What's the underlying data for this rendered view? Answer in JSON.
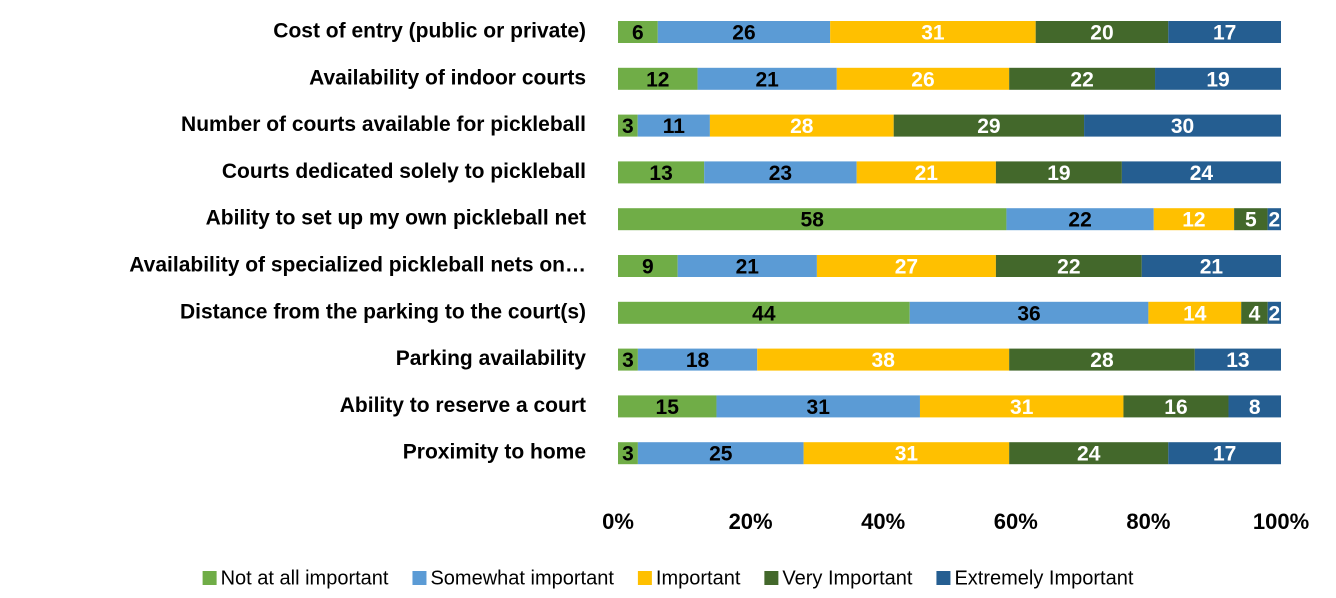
{
  "chart_data": {
    "type": "bar",
    "orientation": "horizontal",
    "stacked": "percent",
    "categories": [
      "Cost of entry (public or private)",
      "Availability of indoor courts",
      "Number of courts available for pickleball",
      "Courts dedicated solely to pickleball",
      "Ability to set up my own pickleball net",
      "Availability of specialized pickleball nets on…",
      "Distance from the parking to the court(s)",
      "Parking availability",
      "Ability to reserve a court",
      "Proximity to home"
    ],
    "series": [
      {
        "name": "Not at all important",
        "color": "#70ad47",
        "label_color": "#000000",
        "values": [
          6,
          12,
          3,
          13,
          58,
          9,
          44,
          3,
          15,
          3
        ]
      },
      {
        "name": "Somewhat important",
        "color": "#5b9bd5",
        "label_color": "#000000",
        "values": [
          26,
          21,
          11,
          23,
          22,
          21,
          36,
          18,
          31,
          25
        ]
      },
      {
        "name": "Important",
        "color": "#ffc000",
        "label_color": "#ffffff",
        "values": [
          31,
          26,
          28,
          21,
          12,
          27,
          14,
          38,
          31,
          31
        ]
      },
      {
        "name": "Very Important",
        "color": "#43682b",
        "label_color": "#ffffff",
        "values": [
          20,
          22,
          29,
          19,
          5,
          22,
          4,
          28,
          16,
          24
        ]
      },
      {
        "name": "Extremely Important",
        "color": "#255e91",
        "label_color": "#ffffff",
        "values": [
          17,
          19,
          30,
          24,
          2,
          21,
          2,
          13,
          8,
          17
        ]
      }
    ],
    "xlim": [
      0,
      100
    ],
    "xticks": [
      {
        "value": 0,
        "label": "0%"
      },
      {
        "value": 20,
        "label": "20%"
      },
      {
        "value": 40,
        "label": "40%"
      },
      {
        "value": 60,
        "label": "60%"
      },
      {
        "value": 80,
        "label": "80%"
      },
      {
        "value": 100,
        "label": "100%"
      }
    ],
    "legend": "bottom"
  }
}
